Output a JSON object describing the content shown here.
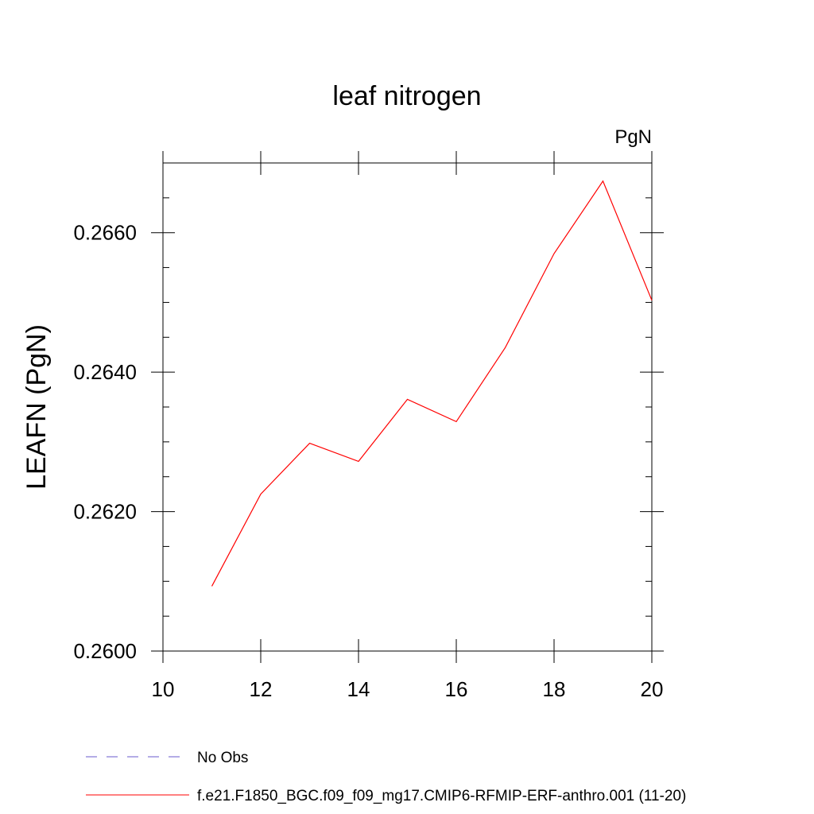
{
  "chart_data": {
    "type": "line",
    "title": "leaf nitrogen",
    "units_label": "PgN",
    "ylabel": "LEAFN  (PgN)",
    "xlabel": "",
    "xlim": [
      10,
      20
    ],
    "ylim": [
      0.26,
      0.267
    ],
    "x_ticks": [
      "10",
      "12",
      "14",
      "16",
      "18",
      "20"
    ],
    "y_ticks": [
      "0.2600",
      "0.2620",
      "0.2640",
      "0.2660"
    ],
    "grid": false,
    "legend_position": "bottom",
    "series": [
      {
        "name": "f.e21.F1850_BGC.f09_f09_mg17.CMIP6-RFMIP-ERF-anthro.001 (11-20)",
        "color": "#ff0000",
        "style": "solid",
        "x": [
          11,
          12,
          13,
          14,
          15,
          16,
          17,
          18,
          19,
          20
        ],
        "y": [
          0.26093,
          0.26225,
          0.26298,
          0.26272,
          0.26361,
          0.26329,
          0.26435,
          0.2657,
          0.26674,
          0.26503
        ]
      }
    ],
    "legend": [
      {
        "label": "No Obs",
        "color": "#6a5acd",
        "style": "dashed"
      },
      {
        "label": "f.e21.F1850_BGC.f09_f09_mg17.CMIP6-RFMIP-ERF-anthro.001 (11-20)",
        "color": "#ff0000",
        "style": "solid"
      }
    ]
  }
}
